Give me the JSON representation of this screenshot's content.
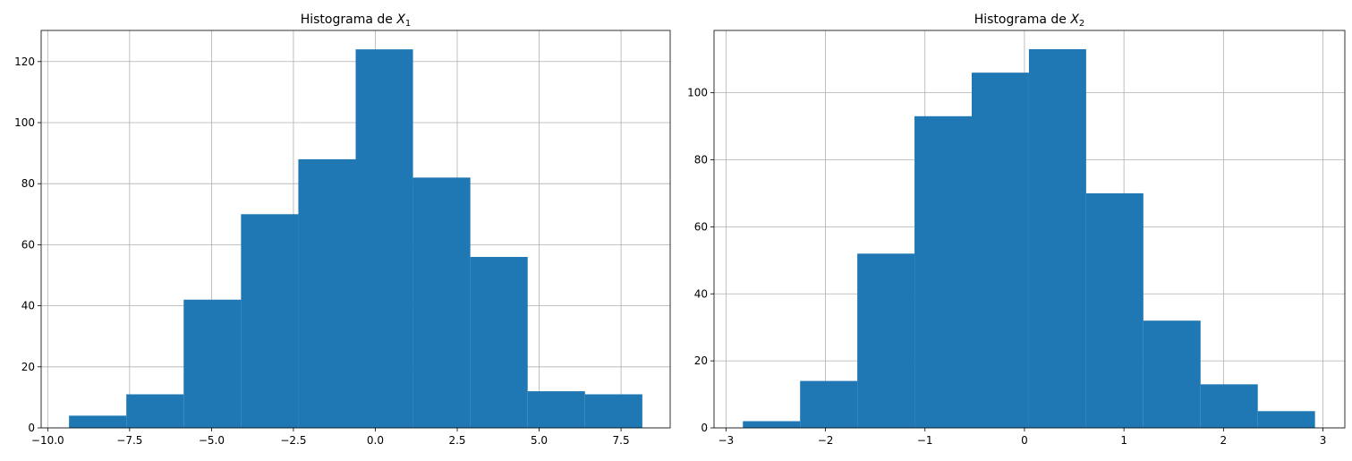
{
  "chart_data": [
    {
      "type": "bar",
      "title": "Histograma de X",
      "title_subscript": "1",
      "xlabel": "",
      "ylabel": "",
      "grid": true,
      "color": "#1f77b4",
      "xlim": [
        -10.2,
        9.0
      ],
      "ylim": [
        0,
        130.2
      ],
      "xticks": [
        -10.0,
        -7.5,
        -5.0,
        -2.5,
        0.0,
        2.5,
        5.0,
        7.5
      ],
      "xtick_labels": [
        "−10.0",
        "−7.5",
        "−5.0",
        "−2.5",
        "0.0",
        "2.5",
        "5.0",
        "7.5"
      ],
      "yticks": [
        0,
        20,
        40,
        60,
        80,
        100,
        120
      ],
      "ytick_labels": [
        "0",
        "20",
        "40",
        "60",
        "80",
        "100",
        "120"
      ],
      "bins": [
        {
          "x0": -9.35,
          "x1": -7.6,
          "count": 4
        },
        {
          "x0": -7.6,
          "x1": -5.85,
          "count": 11
        },
        {
          "x0": -5.85,
          "x1": -4.1,
          "count": 42
        },
        {
          "x0": -4.1,
          "x1": -2.35,
          "count": 70
        },
        {
          "x0": -2.35,
          "x1": -0.6,
          "count": 88
        },
        {
          "x0": -0.6,
          "x1": 1.15,
          "count": 124
        },
        {
          "x0": 1.15,
          "x1": 2.9,
          "count": 82
        },
        {
          "x0": 2.9,
          "x1": 4.65,
          "count": 56
        },
        {
          "x0": 4.65,
          "x1": 6.4,
          "count": 12
        },
        {
          "x0": 6.4,
          "x1": 8.15,
          "count": 11
        }
      ]
    },
    {
      "type": "bar",
      "title": "Histograma de X",
      "title_subscript": "2",
      "xlabel": "",
      "ylabel": "",
      "grid": true,
      "color": "#1f77b4",
      "xlim": [
        -3.12,
        3.22
      ],
      "ylim": [
        0,
        118.6
      ],
      "xticks": [
        -3,
        -2,
        -1,
        0,
        1,
        2,
        3
      ],
      "xtick_labels": [
        "−3",
        "−2",
        "−1",
        "0",
        "1",
        "2",
        "3"
      ],
      "yticks": [
        0,
        20,
        40,
        60,
        80,
        100
      ],
      "ytick_labels": [
        "0",
        "20",
        "40",
        "60",
        "80",
        "100"
      ],
      "bins": [
        {
          "x0": -2.83,
          "x1": -2.255,
          "count": 2
        },
        {
          "x0": -2.255,
          "x1": -1.68,
          "count": 14
        },
        {
          "x0": -1.68,
          "x1": -1.105,
          "count": 52
        },
        {
          "x0": -1.105,
          "x1": -0.53,
          "count": 93
        },
        {
          "x0": -0.53,
          "x1": 0.045,
          "count": 106
        },
        {
          "x0": 0.045,
          "x1": 0.62,
          "count": 113
        },
        {
          "x0": 0.62,
          "x1": 1.195,
          "count": 70
        },
        {
          "x0": 1.195,
          "x1": 1.77,
          "count": 32
        },
        {
          "x0": 1.77,
          "x1": 2.345,
          "count": 13
        },
        {
          "x0": 2.345,
          "x1": 2.92,
          "count": 5
        }
      ]
    }
  ]
}
